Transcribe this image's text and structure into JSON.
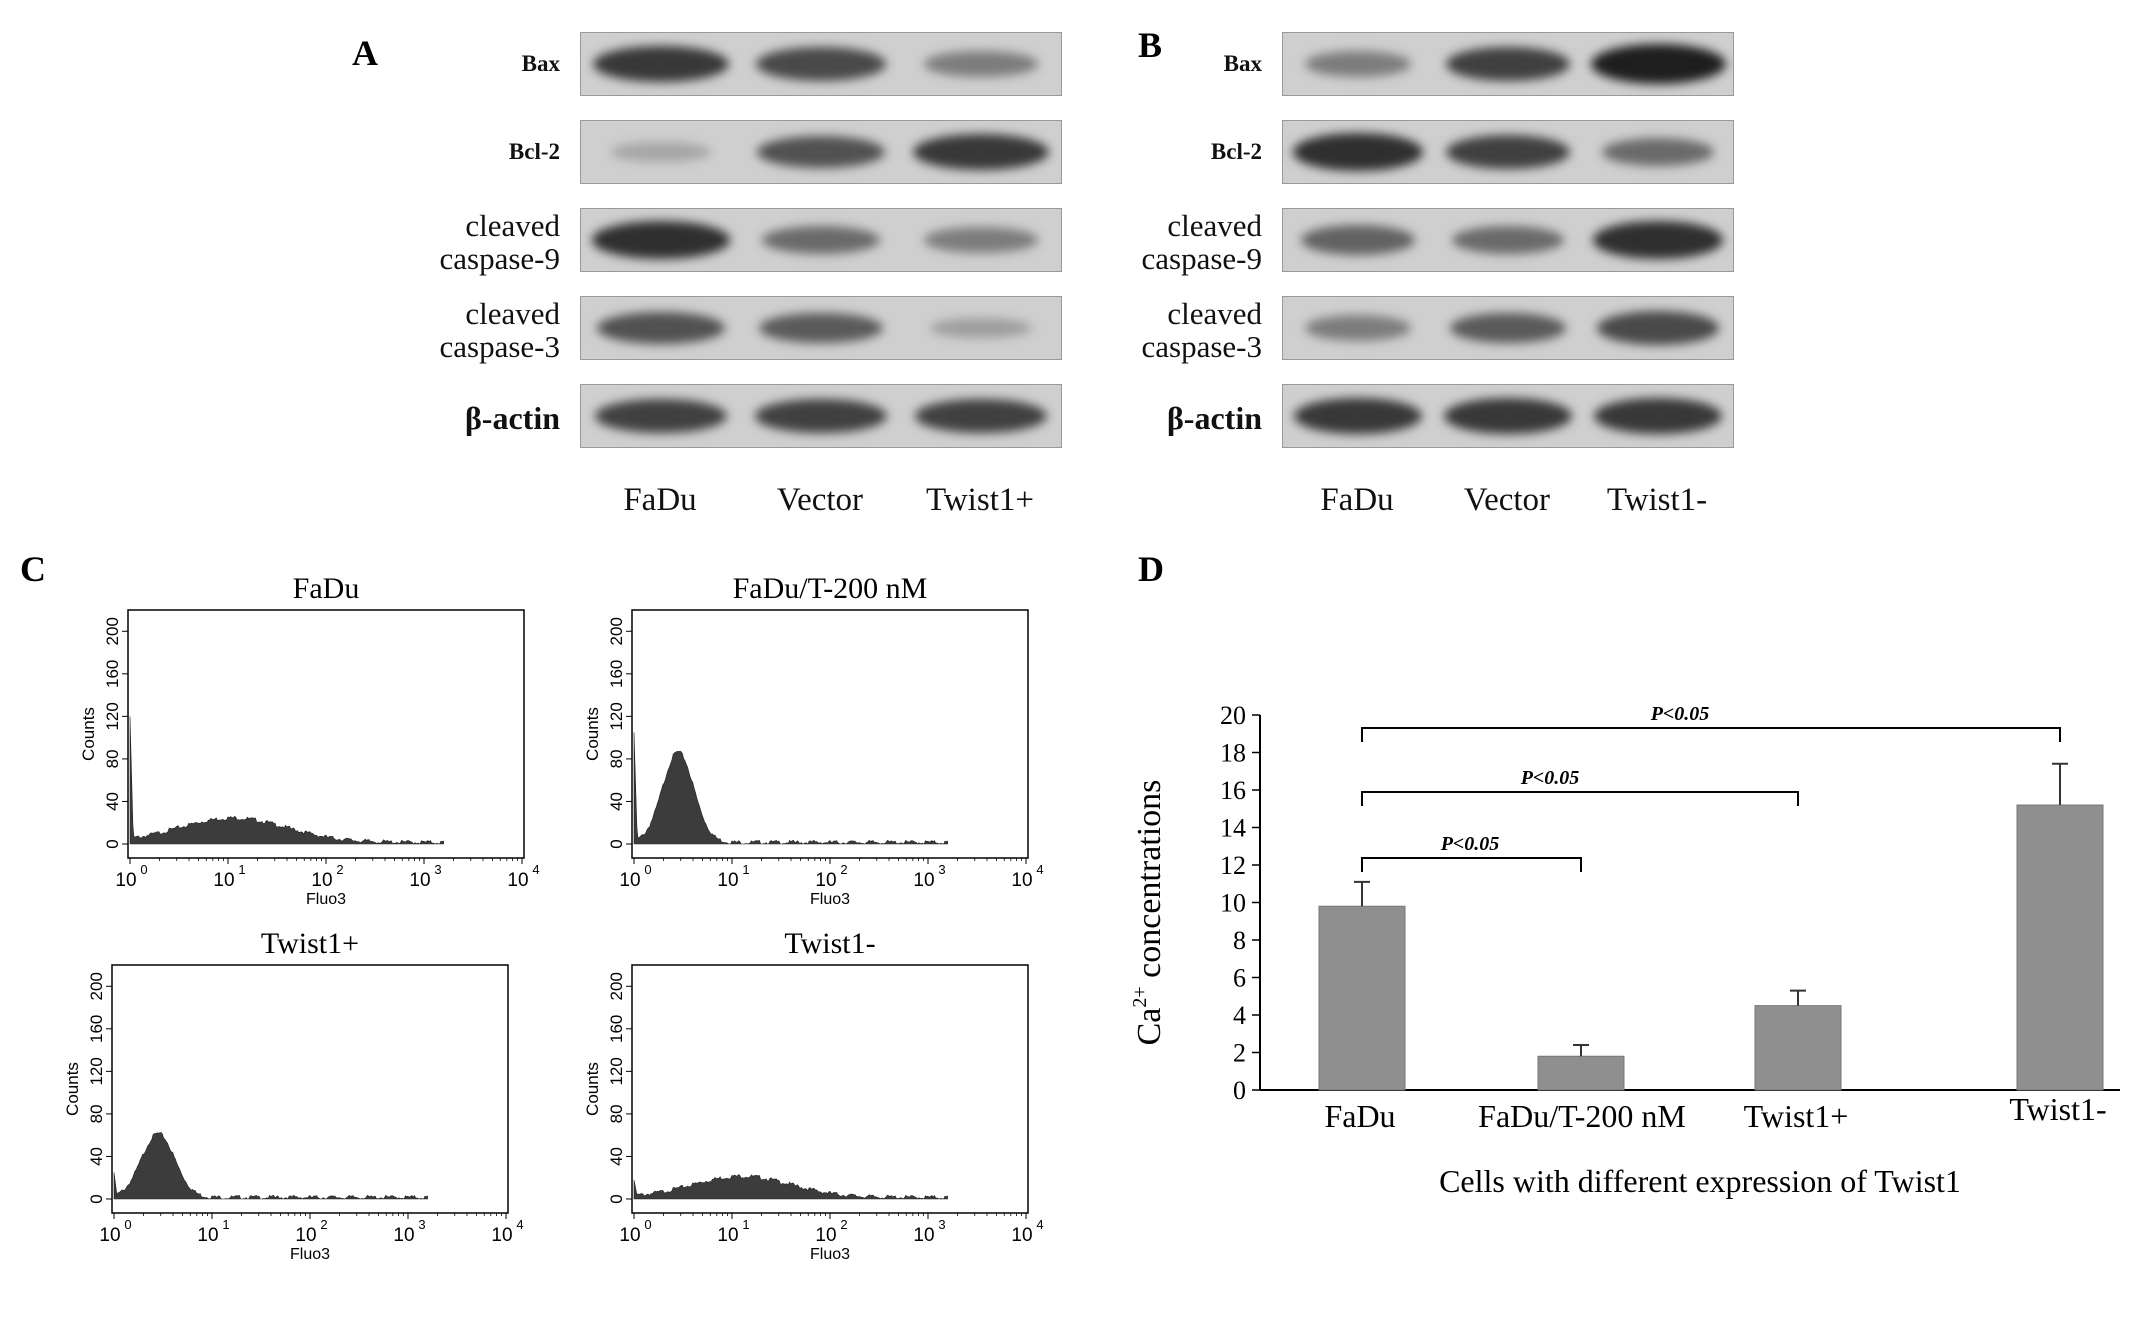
{
  "panels": {
    "A": {
      "letter": "A",
      "rows": [
        {
          "label": "Bax",
          "style": "small",
          "intensity": [
            0.85,
            0.75,
            0.45
          ]
        },
        {
          "label": "Bcl-2",
          "style": "small",
          "intensity": [
            0.2,
            0.7,
            0.85
          ]
        },
        {
          "label_lines": [
            "cleaved",
            "caspase-9"
          ],
          "style": "big",
          "intensity": [
            0.9,
            0.55,
            0.45
          ]
        },
        {
          "label_lines": [
            "cleaved",
            "caspase-3"
          ],
          "style": "big",
          "intensity": [
            0.7,
            0.65,
            0.25
          ]
        },
        {
          "label": "β-actin",
          "style": "actin",
          "intensity": [
            0.8,
            0.8,
            0.8
          ]
        }
      ],
      "lanes": [
        "FaDu",
        "Vector",
        "Twist1+"
      ]
    },
    "B": {
      "letter": "B",
      "rows": [
        {
          "label": "Bax",
          "style": "small",
          "intensity": [
            0.45,
            0.8,
            1.0
          ]
        },
        {
          "label": "Bcl-2",
          "style": "small",
          "intensity": [
            0.9,
            0.8,
            0.55
          ]
        },
        {
          "label_lines": [
            "cleaved",
            "caspase-9"
          ],
          "style": "big",
          "intensity": [
            0.6,
            0.55,
            0.9
          ]
        },
        {
          "label_lines": [
            "cleaved",
            "caspase-3"
          ],
          "style": "big",
          "intensity": [
            0.45,
            0.65,
            0.75
          ]
        },
        {
          "label": "β-actin",
          "style": "actin",
          "intensity": [
            0.85,
            0.85,
            0.85
          ]
        }
      ],
      "lanes": [
        "FaDu",
        "Vector",
        "Twist1-"
      ]
    },
    "C": {
      "letter": "C",
      "y_ticks": [
        "0",
        "40",
        "80",
        "120",
        "160",
        "200"
      ],
      "x_ticks": [
        "10",
        "10",
        "10",
        "10",
        "10"
      ],
      "x_tick_exponents": [
        "0",
        "1",
        "2",
        "3",
        "4"
      ],
      "ylabel": "Counts",
      "xlabel": "Fluo3",
      "histograms": [
        {
          "title": "FaDu",
          "spike_at_min": 120,
          "peak_log": 1.05,
          "peak_count": 23,
          "width": 0.55
        },
        {
          "title": "FaDu/T-200 nM",
          "spike_at_min": 105,
          "peak_log": 0.45,
          "peak_count": 85,
          "width": 0.16
        },
        {
          "title": "Twist1+",
          "spike_at_min": 25,
          "peak_log": 0.45,
          "peak_count": 60,
          "width": 0.17
        },
        {
          "title": "Twist1-",
          "spike_at_min": 18,
          "peak_log": 1.1,
          "peak_count": 20,
          "width": 0.5
        }
      ]
    },
    "D": {
      "letter": "D"
    }
  },
  "chart_data": [
    {
      "type": "bar",
      "title": "",
      "categories": [
        "FaDu",
        "FaDu/T-200 nM",
        "Twist1+",
        "Twist1-"
      ],
      "values": [
        9.8,
        1.8,
        4.5,
        15.2
      ],
      "errors": [
        1.3,
        0.6,
        0.8,
        2.2
      ],
      "ylabel_main": "Ca",
      "ylabel_sup": "2+",
      "ylabel_rest": " concentrations",
      "xlabel": "Cells with different expression of Twist1",
      "ylim": [
        0,
        20
      ],
      "yticks": [
        "0",
        "2",
        "4",
        "6",
        "8",
        "10",
        "12",
        "14",
        "16",
        "18",
        "20"
      ],
      "bar_color": "#8f8f8f",
      "significance": [
        {
          "from": 0,
          "to": 1,
          "label": "P<0.05"
        },
        {
          "from": 0,
          "to": 2,
          "label": "P<0.05"
        },
        {
          "from": 0,
          "to": 3,
          "label": "P<0.05"
        }
      ]
    }
  ]
}
